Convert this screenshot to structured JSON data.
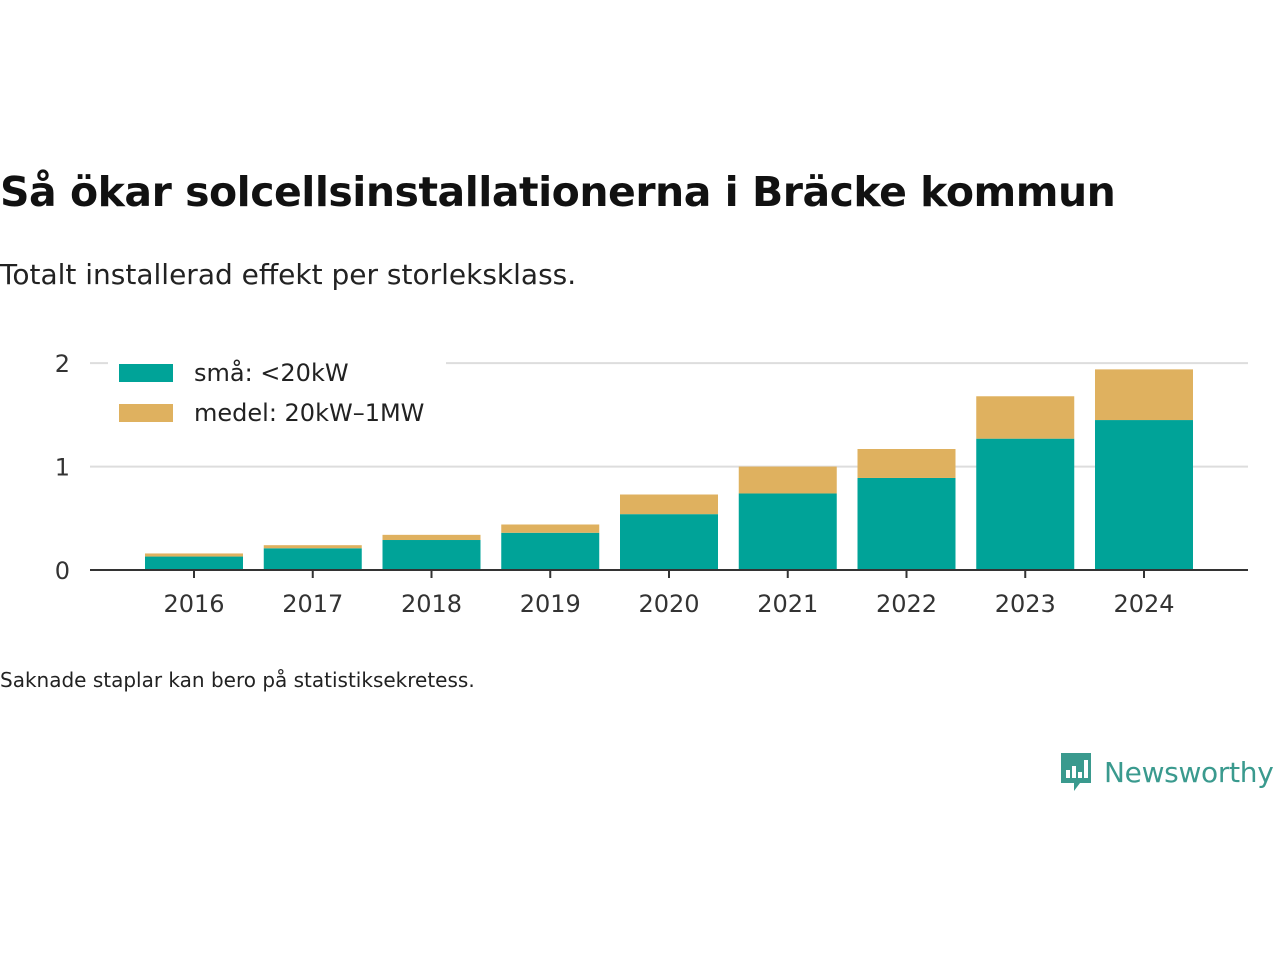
{
  "title": "Så ökar solcellsinstallationerna i Bräcke kommun",
  "subtitle": "Totalt installerad effekt per storleksklass.",
  "footnote": "Saknade staplar kan bero på statistiksekretess.",
  "brand": {
    "name": "Newsworthy",
    "color": "#3a9a8e"
  },
  "chart_data": {
    "type": "bar",
    "stacked": true,
    "categories": [
      "2016",
      "2017",
      "2018",
      "2019",
      "2020",
      "2021",
      "2022",
      "2023",
      "2024"
    ],
    "series": [
      {
        "name": "små: <20kW",
        "color": "#00a398",
        "values": [
          0.13,
          0.21,
          0.29,
          0.36,
          0.54,
          0.74,
          0.89,
          1.27,
          1.45
        ]
      },
      {
        "name": "medel: 20kW–1MW",
        "color": "#dfb15f",
        "values": [
          0.03,
          0.03,
          0.05,
          0.08,
          0.19,
          0.26,
          0.28,
          0.41,
          0.49
        ]
      }
    ],
    "yticks": [
      0,
      1,
      2
    ],
    "ylim": [
      0,
      2.05
    ],
    "xlabel": "",
    "ylabel": "",
    "grid": true,
    "legend_position": "top-left"
  }
}
